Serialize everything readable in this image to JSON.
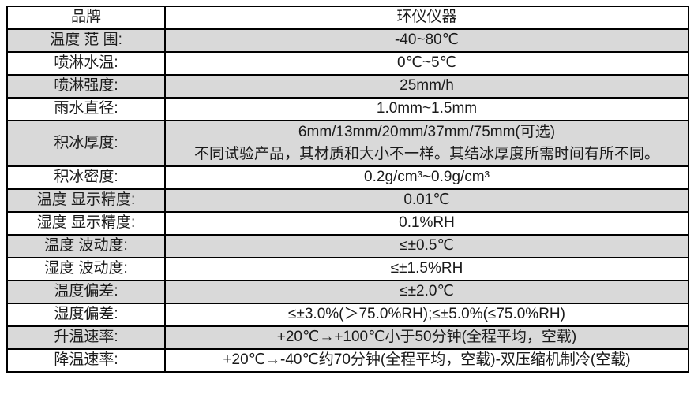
{
  "page": {
    "background_color": "#ffffff",
    "description": "Product specification table"
  },
  "table": {
    "colors": {
      "border": "#000000",
      "shaded_row_bg": "#d9d9d9",
      "plain_row_bg": "#ffffff",
      "text": "#1a1a1a"
    },
    "header": {
      "label": "品牌",
      "value": "环仪仪器"
    },
    "rows": [
      {
        "label": "温度 范 围:",
        "value": "-40~80℃",
        "shaded": true
      },
      {
        "label": "喷淋水温:",
        "value": "0℃~5℃",
        "shaded": false
      },
      {
        "label": "喷淋强度:",
        "value": "25mm/h",
        "shaded": true
      },
      {
        "label": "雨水直径:",
        "value": "1.0mm~1.5mm",
        "shaded": false
      },
      {
        "label": "积冰厚度:",
        "value_line1": "6mm/13mm/20mm/37mm/75mm(可选)",
        "value_line2": "不同试验产品，其材质和大小不一样。其结冰厚度所需时间有所不同。",
        "shaded": true
      },
      {
        "label": "积冰密度:",
        "value": "0.2g/cm³~0.9g/cm³",
        "shaded": false
      },
      {
        "label": "温度 显示精度:",
        "value": "0.01℃",
        "shaded": true
      },
      {
        "label": "湿度 显示精度:",
        "value": "0.1%RH",
        "shaded": false
      },
      {
        "label": "温度 波动度:",
        "value": "≤±0.5℃",
        "shaded": true
      },
      {
        "label": "湿度 波动度:",
        "value": "≤±1.5%RH",
        "shaded": false
      },
      {
        "label": "温度偏差:",
        "value": "≤±2.0℃",
        "shaded": true
      },
      {
        "label": "湿度偏差:",
        "value": "≤±3.0%(＞75.0%RH);≤±5.0%(≤75.0%RH)",
        "shaded": false
      },
      {
        "label": "升温速率:",
        "value": "+20℃→+100℃小于50分钟(全程平均，空载)",
        "shaded": true
      },
      {
        "label": "降温速率:",
        "value": "+20℃→-40℃约70分钟(全程平均，空载)-双压缩机制冷(空载)",
        "shaded": false
      }
    ]
  }
}
